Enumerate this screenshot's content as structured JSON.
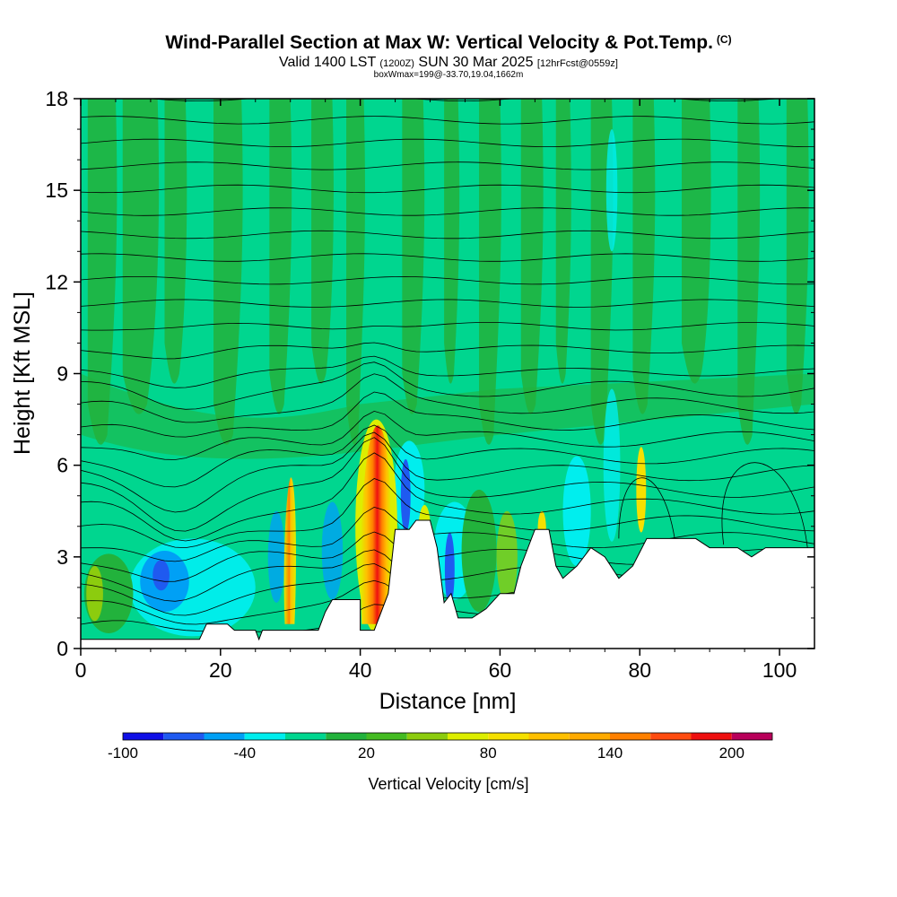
{
  "header": {
    "title": "Wind-Parallel Section at Max W: Vertical Velocity & Pot.Temp.",
    "title_tag": "(C)",
    "valid_prefix": "Valid 1400 LST",
    "valid_utc": "(1200Z)",
    "valid_date": "SUN 30 Mar 2025",
    "forecast_tag": "[12hrFcst@0559z]",
    "boxinfo": "boxWmax=199@-33.70,19.04,1662m"
  },
  "chart_data": {
    "type": "heatmap",
    "xlabel": "Distance [nm]",
    "ylabel": "Height [Kft MSL]",
    "xlim": [
      0,
      105
    ],
    "ylim": [
      0,
      18
    ],
    "x_ticks": [
      0,
      20,
      40,
      60,
      80,
      100
    ],
    "y_ticks": [
      0,
      3,
      6,
      9,
      12,
      15,
      18
    ],
    "background_level": "0 to 20 cm/s",
    "terrain_top_kft": [
      [
        0,
        0.3
      ],
      [
        8,
        0.3
      ],
      [
        17,
        0.3
      ],
      [
        18,
        0.8
      ],
      [
        21,
        0.8
      ],
      [
        22,
        0.6
      ],
      [
        25,
        0.6
      ],
      [
        25.5,
        0.3
      ],
      [
        26,
        0.6
      ],
      [
        34,
        0.6
      ],
      [
        35,
        1.2
      ],
      [
        36,
        1.6
      ],
      [
        40,
        1.6
      ],
      [
        40,
        0.6
      ],
      [
        42,
        0.6
      ],
      [
        44,
        1.8
      ],
      [
        45,
        3.9
      ],
      [
        47,
        3.9
      ],
      [
        48,
        4.2
      ],
      [
        50,
        4.2
      ],
      [
        51,
        3.3
      ],
      [
        52,
        1.5
      ],
      [
        53,
        1.8
      ],
      [
        54,
        1.0
      ],
      [
        56,
        1.0
      ],
      [
        58,
        1.3
      ],
      [
        60,
        1.8
      ],
      [
        62,
        1.8
      ],
      [
        63,
        2.7
      ],
      [
        65,
        3.9
      ],
      [
        67,
        3.9
      ],
      [
        68,
        2.7
      ],
      [
        69,
        2.3
      ],
      [
        71,
        2.7
      ],
      [
        73,
        3.3
      ],
      [
        75,
        3.0
      ],
      [
        77,
        2.3
      ],
      [
        79,
        2.7
      ],
      [
        81,
        3.6
      ],
      [
        88,
        3.6
      ],
      [
        90,
        3.3
      ],
      [
        94,
        3.3
      ],
      [
        96,
        3.0
      ],
      [
        98,
        3.3
      ],
      [
        105,
        3.3
      ]
    ],
    "features": [
      {
        "name": "updraft",
        "x_range": [
          40,
          44.5
        ],
        "height_range": [
          0.6,
          7.2
        ],
        "peak_cm_s": 199
      },
      {
        "name": "updraft",
        "x_range": [
          29,
          31
        ],
        "height_range": [
          0.6,
          5.5
        ],
        "peak_cm_s": 100
      },
      {
        "name": "updraft",
        "x_range": [
          48.5,
          50
        ],
        "height_range": [
          3.0,
          4.5
        ],
        "peak_cm_s": 80
      },
      {
        "name": "updraft",
        "x_range": [
          79,
          81
        ],
        "height_range": [
          3.7,
          6.5
        ],
        "peak_cm_s": 80
      },
      {
        "name": "downdraft",
        "x_range": [
          9,
          18
        ],
        "height_range": [
          0.6,
          3.5
        ],
        "min_cm_s": -60
      },
      {
        "name": "downdraft",
        "x_range": [
          45,
          48
        ],
        "height_range": [
          4.0,
          6.5
        ],
        "min_cm_s": -80
      },
      {
        "name": "downdraft",
        "x_range": [
          52,
          54
        ],
        "height_range": [
          1.6,
          4.0
        ],
        "min_cm_s": -80
      }
    ]
  },
  "colorbar": {
    "label": "Vertical Velocity [cm/s]",
    "tick_labels": [
      "-100",
      "-40",
      "20",
      "80",
      "140",
      "200"
    ],
    "tick_values": [
      -100,
      -40,
      20,
      80,
      140,
      200
    ],
    "range": [
      -100,
      220
    ],
    "levels": [
      -100,
      -80,
      -60,
      -40,
      -20,
      0,
      20,
      40,
      60,
      80,
      100,
      120,
      140,
      160,
      180,
      200,
      220
    ],
    "colors": [
      "#1010e6",
      "#1f5af0",
      "#00a0f5",
      "#00eeee",
      "#00d68f",
      "#22b23c",
      "#44bb22",
      "#8ccc0e",
      "#ddee00",
      "#f5e000",
      "#ffc000",
      "#ffaa00",
      "#ff8000",
      "#ff4c10",
      "#ee1010",
      "#b8005a"
    ]
  }
}
